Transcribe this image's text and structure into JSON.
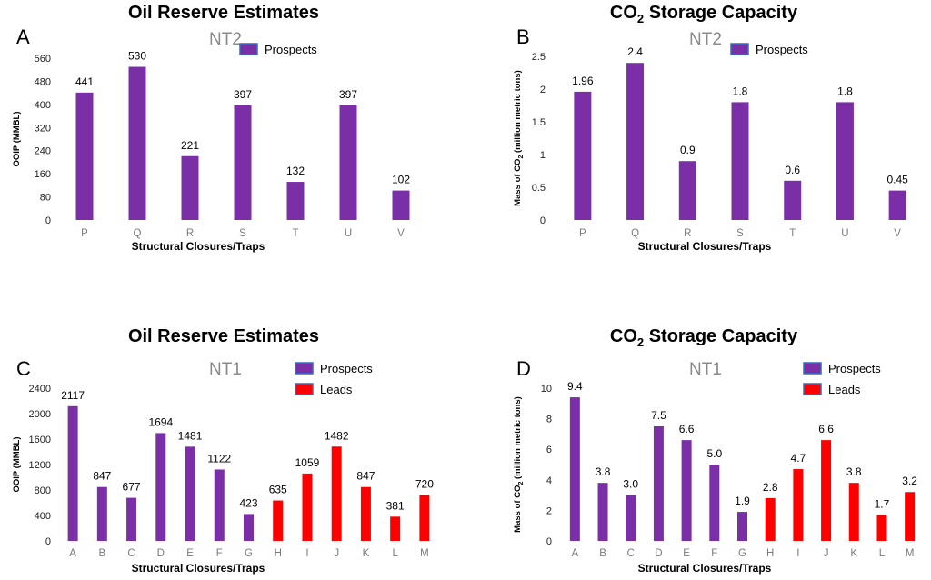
{
  "colors": {
    "prospects": "#7b2fa6",
    "leads": "#ff0000",
    "legend_border": "#2f6fbf"
  },
  "chart_data": [
    {
      "panel": "A",
      "type": "bar",
      "title": "Oil Reserve Estimates",
      "subtitle": "NT2",
      "xlabel": "Structural Closures/Traps",
      "ylabel": "OOIP (MMBL)",
      "ylabel_sub": "",
      "ylabel_tail": "",
      "ylim": [
        0,
        560
      ],
      "yticks": [
        0,
        80,
        160,
        240,
        320,
        400,
        480,
        560
      ],
      "categories": [
        "P",
        "Q",
        "R",
        "S",
        "T",
        "U",
        "V"
      ],
      "values": [
        441,
        530,
        221,
        397,
        132,
        397,
        102
      ],
      "value_labels": [
        "441",
        "530",
        "221",
        "397",
        "132",
        "397",
        "102"
      ],
      "groups": [
        "Prospects",
        "Prospects",
        "Prospects",
        "Prospects",
        "Prospects",
        "Prospects",
        "Prospects"
      ],
      "legend": [
        "Prospects"
      ]
    },
    {
      "panel": "B",
      "type": "bar",
      "title": "CO",
      "title_sub": "2",
      "title_tail": " Storage Capacity",
      "subtitle": "NT2",
      "xlabel": "Structural Closures/Traps",
      "ylabel": "Mass of CO",
      "ylabel_sub": "2",
      "ylabel_tail": " (million metric tons)",
      "ylim": [
        0,
        2.5
      ],
      "yticks": [
        0,
        0.5,
        1,
        1.5,
        2,
        2.5
      ],
      "categories": [
        "P",
        "Q",
        "R",
        "S",
        "T",
        "U",
        "V"
      ],
      "values": [
        1.96,
        2.4,
        0.9,
        1.8,
        0.6,
        1.8,
        0.45
      ],
      "value_labels": [
        "1.96",
        "2.4",
        "0.9",
        "1.8",
        "0.6",
        "1.8",
        "0.45"
      ],
      "groups": [
        "Prospects",
        "Prospects",
        "Prospects",
        "Prospects",
        "Prospects",
        "Prospects",
        "Prospects"
      ],
      "legend": [
        "Prospects"
      ]
    },
    {
      "panel": "C",
      "type": "bar",
      "title": "Oil Reserve Estimates",
      "subtitle": "NT1",
      "xlabel": "Structural Closures/Traps",
      "ylabel": "OOIP (MMBL)",
      "ylabel_sub": "",
      "ylabel_tail": "",
      "ylim": [
        0,
        2400
      ],
      "yticks": [
        0,
        400,
        800,
        1200,
        1600,
        2000,
        2400
      ],
      "categories": [
        "A",
        "B",
        "C",
        "D",
        "E",
        "F",
        "G",
        "H",
        "I",
        "J",
        "K",
        "L",
        "M"
      ],
      "values": [
        2117,
        847,
        677,
        1694,
        1481,
        1122,
        423,
        635,
        1059,
        1482,
        847,
        381,
        720
      ],
      "value_labels": [
        "2117",
        "847",
        "677",
        "1694",
        "1481",
        "1122",
        "423",
        "635",
        "1059",
        "1482",
        "847",
        "381",
        "720"
      ],
      "groups": [
        "Prospects",
        "Prospects",
        "Prospects",
        "Prospects",
        "Prospects",
        "Prospects",
        "Prospects",
        "Leads",
        "Leads",
        "Leads",
        "Leads",
        "Leads",
        "Leads"
      ],
      "legend": [
        "Prospects",
        "Leads"
      ]
    },
    {
      "panel": "D",
      "type": "bar",
      "title": "CO",
      "title_sub": "2",
      "title_tail": " Storage Capacity",
      "subtitle": "NT1",
      "xlabel": "Structural Closures/Traps",
      "ylabel": "Mass of CO",
      "ylabel_sub": "2",
      "ylabel_tail": " (million metric tons)",
      "ylim": [
        0,
        10
      ],
      "yticks": [
        0,
        2,
        4,
        6,
        8,
        10
      ],
      "categories": [
        "A",
        "B",
        "C",
        "D",
        "E",
        "F",
        "G",
        "H",
        "I",
        "J",
        "K",
        "L",
        "M"
      ],
      "values": [
        9.4,
        3.8,
        3.0,
        7.5,
        6.6,
        5.0,
        1.9,
        2.8,
        4.7,
        6.6,
        3.8,
        1.7,
        3.2
      ],
      "value_labels": [
        "9.4",
        "3.8",
        "3.0",
        "7.5",
        "6.6",
        "5.0",
        "1.9",
        "2.8",
        "4.7",
        "6.6",
        "3.8",
        "1.7",
        "3.2"
      ],
      "groups": [
        "Prospects",
        "Prospects",
        "Prospects",
        "Prospects",
        "Prospects",
        "Prospects",
        "Prospects",
        "Leads",
        "Leads",
        "Leads",
        "Leads",
        "Leads",
        "Leads"
      ],
      "legend": [
        "Prospects",
        "Leads"
      ]
    }
  ]
}
